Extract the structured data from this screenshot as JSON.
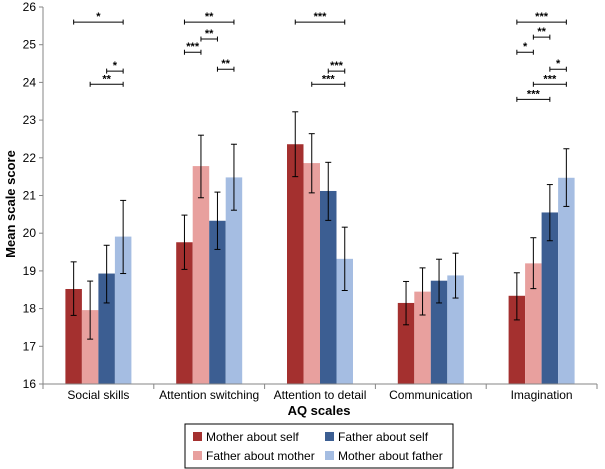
{
  "chart_data": {
    "type": "bar",
    "title": "",
    "xlabel": "AQ scales",
    "ylabel": "Mean scale score",
    "ylim": [
      16,
      26
    ],
    "y_ticks": [
      "16",
      "17",
      "18",
      "19",
      "20",
      "21",
      "22",
      "23",
      "24",
      "25",
      "26"
    ],
    "grid": false,
    "legend_position": "bottom",
    "categories": [
      "Social skills",
      "Attention switching",
      "Attention to detail",
      "Communication",
      "Imagination"
    ],
    "series": [
      {
        "name": "Mother about self",
        "color": "#a4302f",
        "values": [
          18.52,
          19.76,
          22.36,
          18.15,
          18.34
        ],
        "err_low": [
          17.82,
          19.04,
          21.5,
          17.57,
          17.7
        ],
        "err_high": [
          19.24,
          20.48,
          23.22,
          18.72,
          18.95
        ]
      },
      {
        "name": "Father about mother",
        "color": "#e8a09e",
        "values": [
          17.96,
          21.78,
          21.86,
          18.45,
          19.2
        ],
        "err_low": [
          17.19,
          20.94,
          21.07,
          17.83,
          18.53
        ],
        "err_high": [
          18.73,
          22.6,
          22.64,
          19.08,
          19.88
        ]
      },
      {
        "name": "Father about self",
        "color": "#3c5e92",
        "values": [
          18.93,
          20.33,
          21.12,
          18.74,
          20.55
        ],
        "err_low": [
          18.15,
          19.57,
          20.34,
          18.15,
          19.8
        ],
        "err_high": [
          19.68,
          21.09,
          21.88,
          19.31,
          21.29
        ]
      },
      {
        "name": "Mother about father",
        "color": "#a5bde2",
        "values": [
          19.91,
          21.48,
          19.32,
          18.88,
          21.47
        ],
        "err_low": [
          18.93,
          20.61,
          18.48,
          18.28,
          20.71
        ],
        "err_high": [
          20.87,
          22.36,
          20.16,
          19.47,
          22.24
        ]
      }
    ],
    "significance": [
      {
        "category": 0,
        "from": 0,
        "to": 3,
        "y": 25.6,
        "label": "*"
      },
      {
        "category": 0,
        "from": 2,
        "to": 3,
        "y": 24.3,
        "label": "*"
      },
      {
        "category": 0,
        "from": 1,
        "to": 3,
        "y": 23.95,
        "label": "**"
      },
      {
        "category": 1,
        "from": 0,
        "to": 3,
        "y": 25.6,
        "label": "**"
      },
      {
        "category": 1,
        "from": 1,
        "to": 2,
        "y": 25.15,
        "label": "**"
      },
      {
        "category": 1,
        "from": 0,
        "to": 1,
        "y": 24.8,
        "label": "***"
      },
      {
        "category": 1,
        "from": 2,
        "to": 3,
        "y": 24.35,
        "label": "**"
      },
      {
        "category": 2,
        "from": 0,
        "to": 3,
        "y": 25.6,
        "label": "***"
      },
      {
        "category": 2,
        "from": 2,
        "to": 3,
        "y": 24.3,
        "label": "***"
      },
      {
        "category": 2,
        "from": 1,
        "to": 3,
        "y": 23.95,
        "label": "***"
      },
      {
        "category": 4,
        "from": 0,
        "to": 3,
        "y": 25.6,
        "label": "***"
      },
      {
        "category": 4,
        "from": 1,
        "to": 2,
        "y": 25.2,
        "label": "**"
      },
      {
        "category": 4,
        "from": 0,
        "to": 1,
        "y": 24.8,
        "label": "*"
      },
      {
        "category": 4,
        "from": 2,
        "to": 3,
        "y": 24.35,
        "label": "*"
      },
      {
        "category": 4,
        "from": 1,
        "to": 3,
        "y": 23.95,
        "label": "***"
      },
      {
        "category": 4,
        "from": 0,
        "to": 2,
        "y": 23.55,
        "label": "***"
      }
    ]
  }
}
